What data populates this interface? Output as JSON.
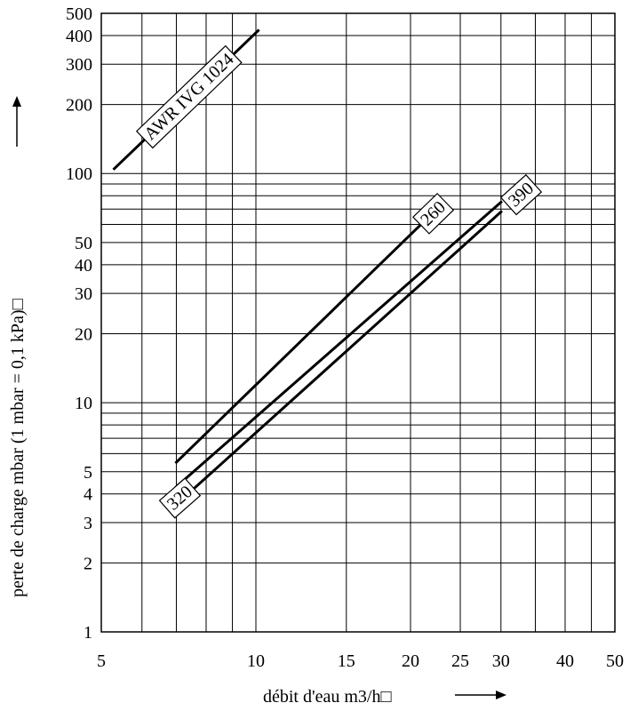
{
  "chart_data": {
    "type": "line",
    "xscale": "log",
    "yscale": "log",
    "xlim": [
      5,
      50
    ],
    "ylim": [
      1,
      500
    ],
    "grid": true,
    "xlabel": "débit d'eau m3/h□",
    "ylabel": "perte de charge mbar (1 mbar = 0,1 kPa)□",
    "x_ticks": [
      5,
      10,
      15,
      20,
      25,
      30,
      40,
      50
    ],
    "y_ticks": [
      1,
      2,
      3,
      4,
      5,
      10,
      20,
      30,
      40,
      50,
      100,
      200,
      300,
      400,
      500
    ],
    "series": [
      {
        "name": "AWR IVG 1024",
        "x": [
          5.3,
          10.1
        ],
        "y": [
          105,
          420
        ]
      },
      {
        "name": "260",
        "x": [
          7.0,
          22.5
        ],
        "y": [
          5.5,
          70
        ]
      },
      {
        "name": "320",
        "x": [
          7.0,
          30.0
        ],
        "y": [
          4.3,
          75
        ]
      },
      {
        "name": "390",
        "x": [
          7.0,
          30.0
        ],
        "y": [
          3.6,
          68
        ]
      }
    ]
  }
}
